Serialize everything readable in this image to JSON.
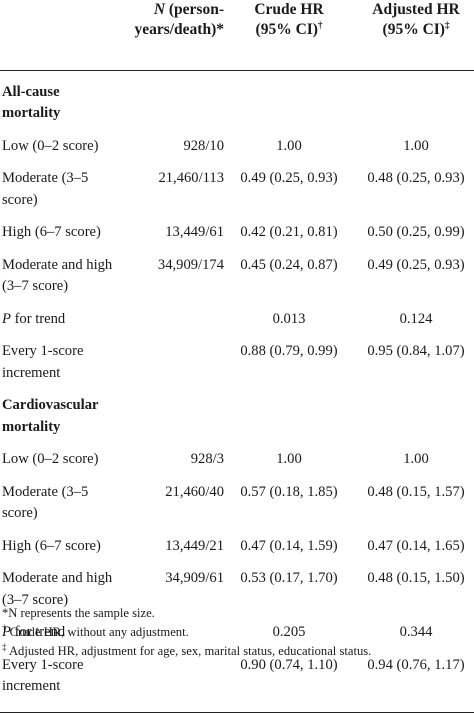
{
  "header": {
    "col1": "",
    "col2_italic": "N",
    "col2_line1": " (person-",
    "col2_line2": "years/death)*",
    "col3_line1": "Crude HR",
    "col3_line2": "(95% CI)",
    "col3_mark": "†",
    "col4_line1": "Adjusted HR",
    "col4_line2": "(95% CI)",
    "col4_mark": "‡"
  },
  "sections": [
    {
      "title": "All-cause mortality",
      "rows": [
        {
          "label": "Low (0–2 score)",
          "n": "928/10",
          "crude": "1.00",
          "adjusted": "1.00"
        },
        {
          "label": "Moderate (3–5 score)",
          "n": "21,460/113",
          "crude": "0.49 (0.25, 0.93)",
          "adjusted": "0.48 (0.25, 0.93)"
        },
        {
          "label": "High (6–7 score)",
          "n": "13,449/61",
          "crude": "0.42 (0.21, 0.81)",
          "adjusted": "0.50 (0.25, 0.99)"
        },
        {
          "label": "Moderate and high (3–7 score)",
          "n": "34,909/174",
          "crude": "0.45 (0.24, 0.87)",
          "adjusted": "0.49 (0.25, 0.93)"
        },
        {
          "label_italic": "P",
          "label": " for trend",
          "n": "",
          "crude": "0.013",
          "adjusted": "0.124"
        },
        {
          "label": "Every 1-score increment",
          "n": "",
          "crude": "0.88 (0.79, 0.99)",
          "adjusted": "0.95 (0.84, 1.07)"
        }
      ]
    },
    {
      "title": "Cardiovascular mortality",
      "rows": [
        {
          "label": "Low (0–2 score)",
          "n": "928/3",
          "crude": "1.00",
          "adjusted": "1.00"
        },
        {
          "label": "Moderate (3–5 score)",
          "n": "21,460/40",
          "crude": "0.57 (0.18, 1.85)",
          "adjusted": "0.48 (0.15, 1.57)"
        },
        {
          "label": "High (6–7 score)",
          "n": "13,449/21",
          "crude": "0.47 (0.14, 1.59)",
          "adjusted": "0.47 (0.14, 1.65)"
        },
        {
          "label": "Moderate and high (3–7 score)",
          "n": "34,909/61",
          "crude": "0.53 (0.17, 1.70)",
          "adjusted": "0.48 (0.15, 1.50)"
        },
        {
          "label_italic": "P",
          "label": " for trend",
          "n": "",
          "crude": "0.205",
          "adjusted": "0.344"
        },
        {
          "label": "Every 1-score increment",
          "n": "",
          "crude": "0.90 (0.74, 1.10)",
          "adjusted": "0.94 (0.76, 1.17)"
        }
      ]
    }
  ],
  "footnotes": [
    {
      "mark": "",
      "text": "*N represents the sample size."
    },
    {
      "mark": "†",
      "text": " Crude HR, without any adjustment."
    },
    {
      "mark": "‡",
      "text": " Adjusted HR, adjustment for age, sex, marital status, educational status."
    }
  ]
}
